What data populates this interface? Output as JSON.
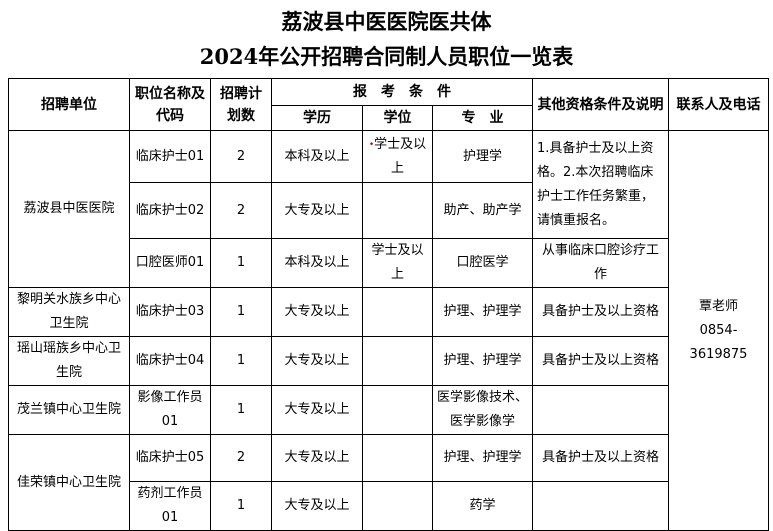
{
  "title": {
    "line1": "荔波县中医医院医共体",
    "line2": "2024年公开招聘合同制人员职位一览表"
  },
  "headers": {
    "unit": "招聘单位",
    "position": "职位名称及代码",
    "plan": "招聘计划数",
    "conditions": "报　考　条　件",
    "education": "学历",
    "degree": "学位",
    "major": "专　业",
    "other": "其他资格条件及说明",
    "contact": "联系人及电话"
  },
  "rows": [
    {
      "unit": "荔波县中医医院",
      "position": "临床护士01",
      "plan": "2",
      "education": "本科及以上",
      "degree": "学士及以上",
      "major": "护理学"
    },
    {
      "position": "临床护士02",
      "plan": "2",
      "education": "大专及以上",
      "degree": "",
      "major": "助产、助产学"
    },
    {
      "position": "口腔医师01",
      "plan": "1",
      "education": "本科及以上",
      "degree": "学士及以上",
      "major": "口腔医学",
      "other": "从事临床口腔诊疗工作"
    },
    {
      "unit": "黎明关水族乡中心卫生院",
      "position": "临床护士03",
      "plan": "1",
      "education": "大专及以上",
      "degree": "",
      "major": "护理、护理学",
      "other": "具备护士及以上资格"
    },
    {
      "unit": "瑶山瑶族乡中心卫生院",
      "position": "临床护士04",
      "plan": "1",
      "education": "大专及以上",
      "degree": "",
      "major": "护理、护理学",
      "other": "具备护士及以上资格"
    },
    {
      "unit": "茂兰镇中心卫生院",
      "position": "影像工作员01",
      "plan": "1",
      "education": "大专及以上",
      "degree": "",
      "major": "医学影像技术、医学影像学",
      "other": ""
    },
    {
      "unit": "佳荣镇中心卫生院",
      "position": "临床护士05",
      "plan": "2",
      "education": "大专及以上",
      "degree": "",
      "major": "护理、护理学",
      "other": "具备护士及以上资格"
    },
    {
      "position": "药剂工作员01",
      "plan": "1",
      "education": "大专及以上",
      "degree": "",
      "major": "药学",
      "other": ""
    }
  ],
  "other_group1": "1.具备护士及以上资格。2.本次招聘临床护士工作任务繁重，请慎重报名。",
  "contact": {
    "name": "覃老师",
    "phone": "0854-3619875"
  }
}
